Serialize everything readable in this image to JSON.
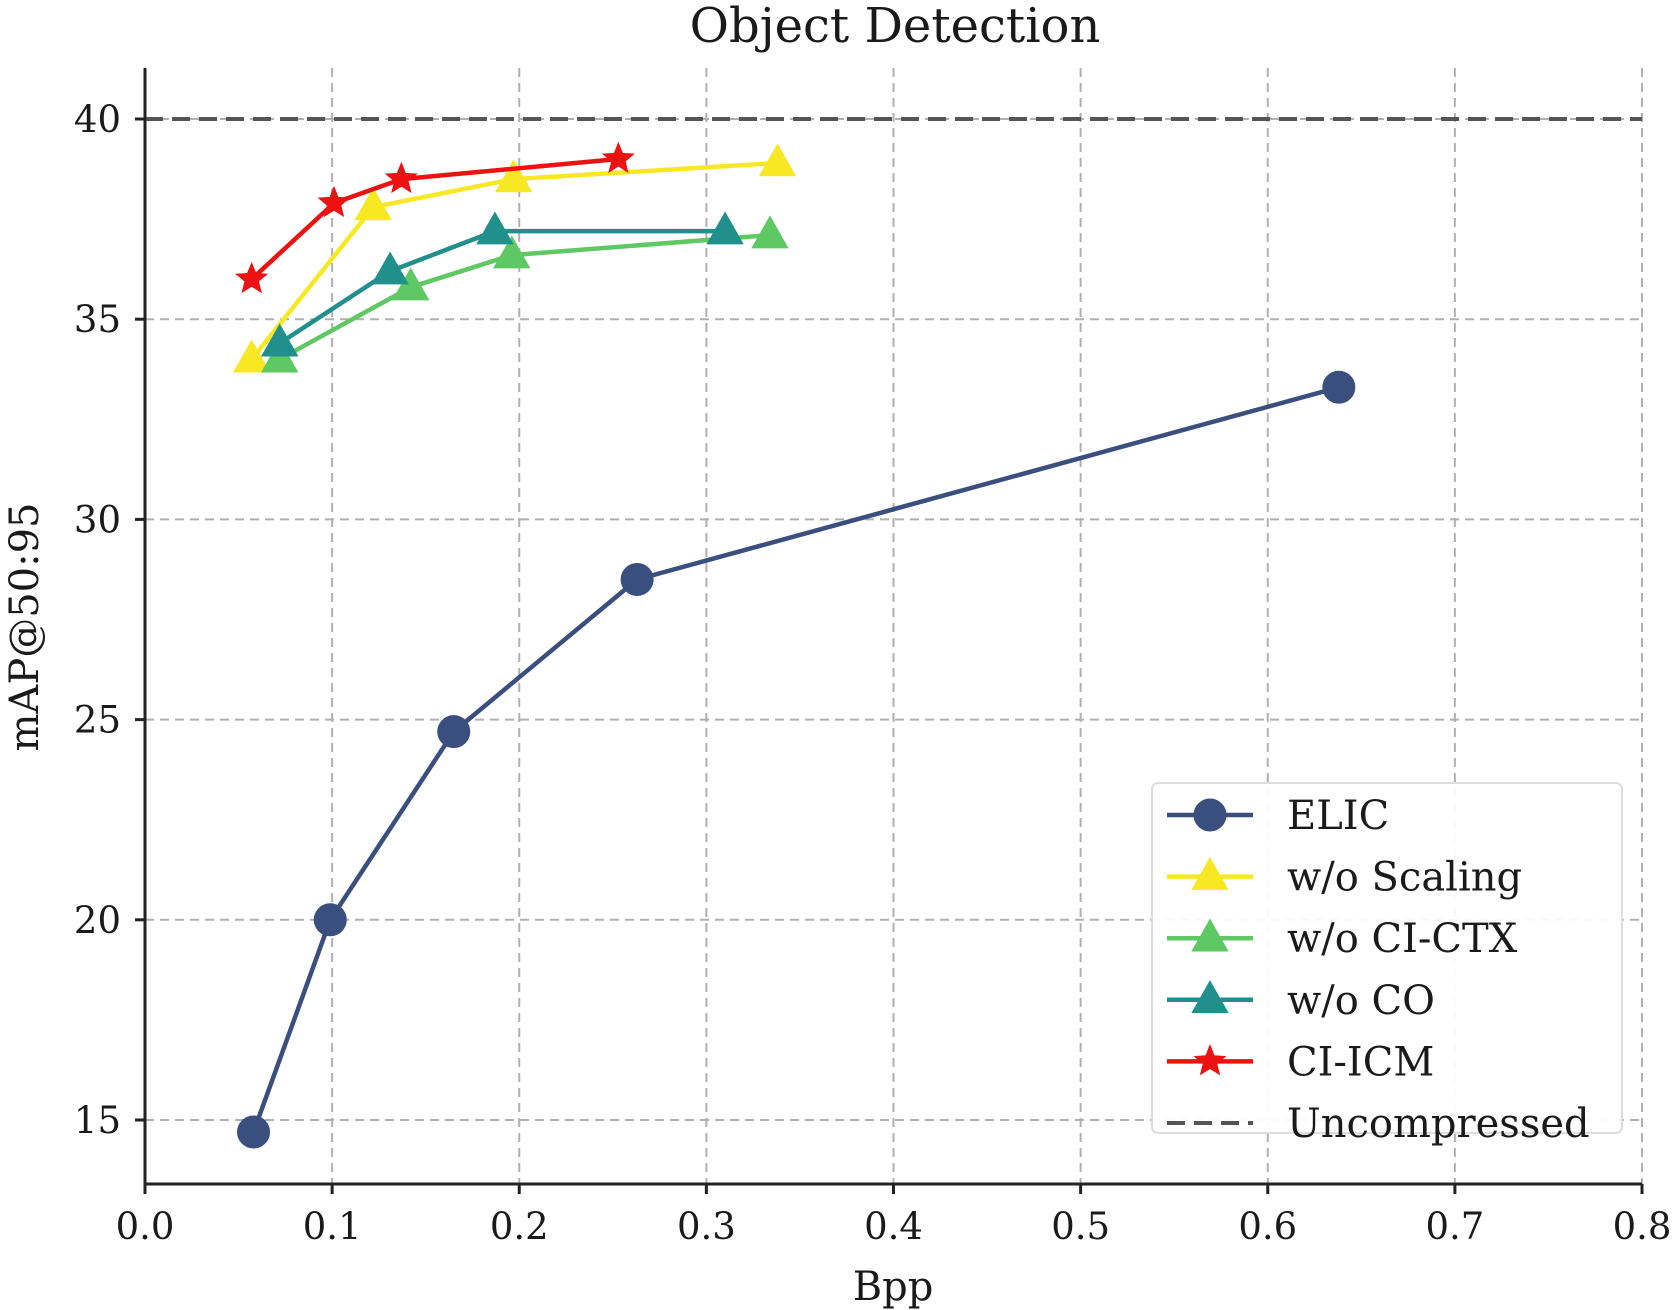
{
  "chart_data": {
    "type": "line",
    "title": "Object Detection",
    "xlabel": "Bpp",
    "ylabel": "mAP@50:95",
    "xlim": [
      0.0,
      0.8
    ],
    "ylim": [
      13.5,
      41.3
    ],
    "xticks": [
      0.0,
      0.1,
      0.2,
      0.3,
      0.4,
      0.5,
      0.6,
      0.7,
      0.8
    ],
    "xtick_labels": [
      "0.0",
      "0.1",
      "0.2",
      "0.3",
      "0.4",
      "0.5",
      "0.6",
      "0.7",
      "0.8"
    ],
    "yticks": [
      15,
      20,
      25,
      30,
      35,
      40
    ],
    "ytick_labels": [
      "15",
      "20",
      "25",
      "30",
      "35",
      "40"
    ],
    "grid": true,
    "legend_position": "lower-right",
    "series": [
      {
        "name": "ELIC",
        "color": "#3b4f7f",
        "marker": "circle",
        "points": [
          [
            0.058,
            14.7
          ],
          [
            0.099,
            20.0
          ],
          [
            0.165,
            24.7
          ],
          [
            0.263,
            28.5
          ],
          [
            0.638,
            33.3
          ]
        ]
      },
      {
        "name": "w/o Scaling",
        "color": "#f7e823",
        "marker": "triangle",
        "points": [
          [
            0.057,
            34.0
          ],
          [
            0.122,
            37.8
          ],
          [
            0.197,
            38.5
          ],
          [
            0.338,
            38.9
          ]
        ]
      },
      {
        "name": "w/o CI-CTX",
        "color": "#5ec962",
        "marker": "triangle",
        "points": [
          [
            0.072,
            34.0
          ],
          [
            0.142,
            35.8
          ],
          [
            0.196,
            36.6
          ],
          [
            0.334,
            37.1
          ]
        ]
      },
      {
        "name": "w/o CO",
        "color": "#21908d",
        "marker": "triangle",
        "points": [
          [
            0.072,
            34.4
          ],
          [
            0.131,
            36.2
          ],
          [
            0.187,
            37.2
          ],
          [
            0.31,
            37.2
          ]
        ]
      },
      {
        "name": "CI-ICM",
        "color": "#ee1111",
        "marker": "star",
        "points": [
          [
            0.057,
            36.0
          ],
          [
            0.101,
            37.9
          ],
          [
            0.137,
            38.5
          ],
          [
            0.253,
            39.0
          ]
        ]
      }
    ],
    "reference_lines": [
      {
        "name": "Uncompressed",
        "y": 40.0,
        "color": "#555555",
        "style": "dashed"
      }
    ]
  }
}
